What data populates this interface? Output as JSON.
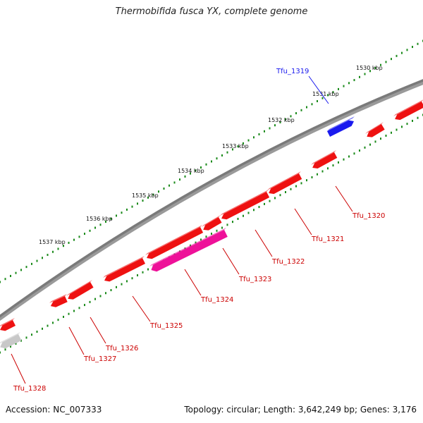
{
  "title": "Thermobifida fusca YX, complete genome",
  "footer": {
    "accession": "Accession: NC_007333",
    "summary": "Topology: circular; Length: 3,642,249 bp; Genes: 3,176"
  },
  "kbp_ticks": [
    "1530 kbp",
    "1531 kbp",
    "1532 kbp",
    "1533 kbp",
    "1534 kbp",
    "1535 kbp",
    "1536 kbp",
    "1537 kbp"
  ],
  "colors": {
    "forward_gene": "#1a1aee",
    "reverse_gene": "#ee1111",
    "highlight_gene": "#ee1199",
    "other_gene": "#c8c8c8",
    "backbone": "#7a7a7a",
    "tick": "#1a8a1a",
    "forward_label": "#1a1aee",
    "reverse_label": "#cc0000"
  },
  "genes": [
    {
      "name": "Tfu_1319",
      "strand": "forward"
    },
    {
      "name": "Tfu_1320",
      "strand": "reverse"
    },
    {
      "name": "Tfu_1321",
      "strand": "reverse"
    },
    {
      "name": "Tfu_1322",
      "strand": "reverse"
    },
    {
      "name": "Tfu_1323",
      "strand": "reverse"
    },
    {
      "name": "Tfu_1324",
      "strand": "reverse"
    },
    {
      "name": "Tfu_1325",
      "strand": "reverse"
    },
    {
      "name": "Tfu_1326",
      "strand": "reverse"
    },
    {
      "name": "Tfu_1327",
      "strand": "reverse"
    },
    {
      "name": "Tfu_1328",
      "strand": "reverse"
    }
  ]
}
